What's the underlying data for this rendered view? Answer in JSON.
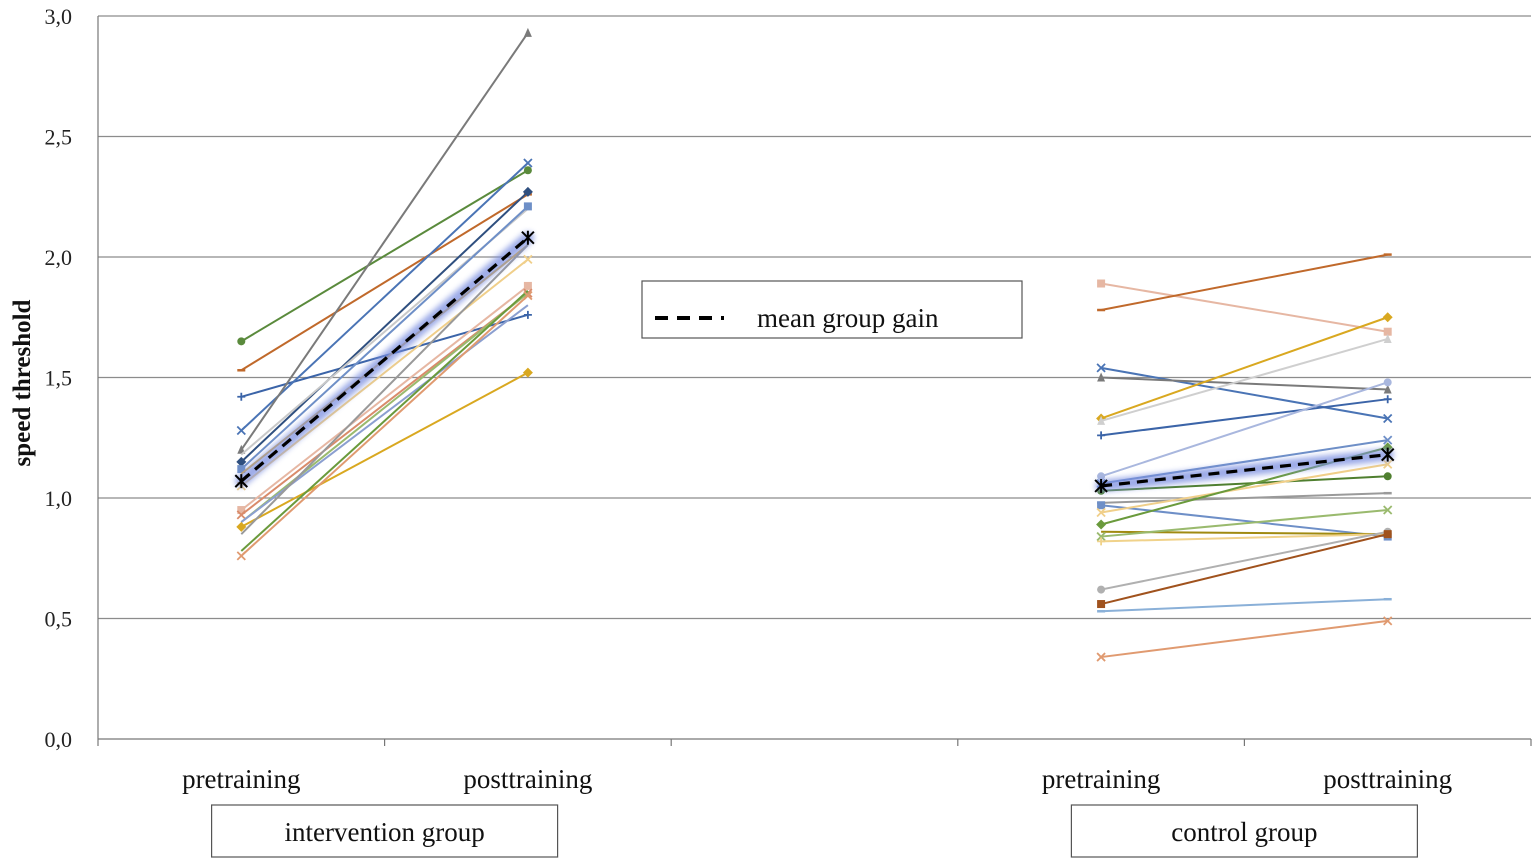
{
  "chart_data": {
    "type": "line",
    "ylabel": "speed threshold",
    "ylim": [
      0,
      3
    ],
    "yticks": [
      "0,0",
      "0,5",
      "1,0",
      "1,5",
      "2,0",
      "2,5",
      "3,0"
    ],
    "ytick_values": [
      0,
      0.5,
      1.0,
      1.5,
      2.0,
      2.5,
      3.0
    ],
    "grid": true,
    "categories": [
      "pretraining",
      "posttraining",
      "",
      "pretraining",
      "posttraining"
    ],
    "groups": [
      {
        "label": "intervention group",
        "categories": [
          "pretraining",
          "posttraining"
        ]
      },
      {
        "label": "control group",
        "categories": [
          "pretraining",
          "posttraining"
        ]
      }
    ],
    "legend": {
      "label": "mean group gain",
      "position": "center"
    },
    "intervention_series": [
      {
        "pre": 1.65,
        "post": 2.36,
        "color": "#5a8a3c",
        "marker": "circle"
      },
      {
        "pre": 1.53,
        "post": 2.26,
        "color": "#c0692b",
        "marker": "dash"
      },
      {
        "pre": 1.42,
        "post": 1.76,
        "color": "#3b64a8",
        "marker": "plus"
      },
      {
        "pre": 1.28,
        "post": 2.39,
        "color": "#4a74b5",
        "marker": "x"
      },
      {
        "pre": 1.2,
        "post": 2.93,
        "color": "#7a7a7a",
        "marker": "triangle"
      },
      {
        "pre": 1.15,
        "post": 2.27,
        "color": "#2f4f7f",
        "marker": "diamond"
      },
      {
        "pre": 1.18,
        "post": 2.2,
        "color": "#c9c9c9",
        "marker": "none"
      },
      {
        "pre": 1.12,
        "post": 2.21,
        "color": "#6e8fc7",
        "marker": "square"
      },
      {
        "pre": 1.1,
        "post": 2.05,
        "color": "#e0b040",
        "marker": "none"
      },
      {
        "pre": 1.05,
        "post": 1.99,
        "color": "#f0cf8a",
        "marker": "x"
      },
      {
        "pre": 0.95,
        "post": 1.88,
        "color": "#e6b7a3",
        "marker": "square"
      },
      {
        "pre": 0.93,
        "post": 1.85,
        "color": "#d98b6a",
        "marker": "x"
      },
      {
        "pre": 0.9,
        "post": 1.85,
        "color": "#9aba6e",
        "marker": "none"
      },
      {
        "pre": 0.9,
        "post": 1.8,
        "color": "#8b9fd0",
        "marker": "none"
      },
      {
        "pre": 0.88,
        "post": 1.52,
        "color": "#d9a820",
        "marker": "diamond"
      },
      {
        "pre": 0.85,
        "post": 2.05,
        "color": "#999999",
        "marker": "none"
      },
      {
        "pre": 0.78,
        "post": 1.86,
        "color": "#6a9a3c",
        "marker": "none"
      },
      {
        "pre": 0.76,
        "post": 1.84,
        "color": "#e09a70",
        "marker": "x"
      }
    ],
    "intervention_mean": {
      "pre": 1.07,
      "post": 2.08
    },
    "control_series": [
      {
        "pre": 1.89,
        "post": 1.69,
        "color": "#e6b7a3",
        "marker": "square"
      },
      {
        "pre": 1.78,
        "post": 2.01,
        "color": "#c0692b",
        "marker": "dash"
      },
      {
        "pre": 1.54,
        "post": 1.33,
        "color": "#4a74b5",
        "marker": "x"
      },
      {
        "pre": 1.5,
        "post": 1.45,
        "color": "#7a7a7a",
        "marker": "triangle"
      },
      {
        "pre": 1.33,
        "post": 1.75,
        "color": "#d9a820",
        "marker": "diamond"
      },
      {
        "pre": 1.32,
        "post": 1.66,
        "color": "#cfcfcf",
        "marker": "triangle"
      },
      {
        "pre": 1.26,
        "post": 1.41,
        "color": "#3b64a8",
        "marker": "plus"
      },
      {
        "pre": 1.09,
        "post": 1.48,
        "color": "#a9b7de",
        "marker": "circle"
      },
      {
        "pre": 1.06,
        "post": 1.24,
        "color": "#6e8fc7",
        "marker": "x"
      },
      {
        "pre": 1.03,
        "post": 1.09,
        "color": "#4f7f2f",
        "marker": "circle"
      },
      {
        "pre": 0.98,
        "post": 1.02,
        "color": "#9a9a9a",
        "marker": "dash"
      },
      {
        "pre": 0.97,
        "post": 0.84,
        "color": "#6e8fc7",
        "marker": "square"
      },
      {
        "pre": 0.94,
        "post": 1.14,
        "color": "#f0cf8a",
        "marker": "x"
      },
      {
        "pre": 0.89,
        "post": 1.21,
        "color": "#6a9a3c",
        "marker": "diamond"
      },
      {
        "pre": 0.86,
        "post": 0.85,
        "color": "#a08a10",
        "marker": "none"
      },
      {
        "pre": 0.84,
        "post": 0.95,
        "color": "#9aba6e",
        "marker": "x"
      },
      {
        "pre": 0.82,
        "post": 0.85,
        "color": "#f0d28a",
        "marker": "plus"
      },
      {
        "pre": 0.62,
        "post": 0.86,
        "color": "#b0b0b0",
        "marker": "circle"
      },
      {
        "pre": 0.56,
        "post": 0.85,
        "color": "#a0521d",
        "marker": "square"
      },
      {
        "pre": 0.53,
        "post": 0.58,
        "color": "#8ab0d8",
        "marker": "dash"
      },
      {
        "pre": 0.34,
        "post": 0.49,
        "color": "#e09a70",
        "marker": "x"
      }
    ],
    "control_mean": {
      "pre": 1.05,
      "post": 1.18
    },
    "mean_style": {
      "color": "#000000",
      "halo": "#7b8fe0"
    }
  }
}
